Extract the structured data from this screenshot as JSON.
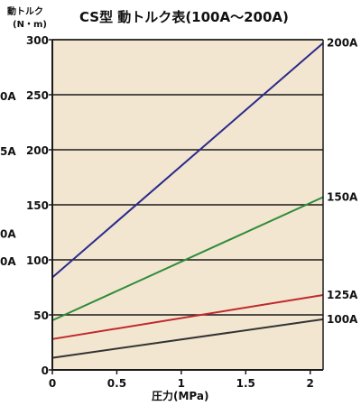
{
  "chart_data": {
    "type": "line",
    "title": "CS型 動トルク表(100A～200A)",
    "ylabel_line1": "動トルク",
    "ylabel_line2": "(N・m)",
    "xlabel": "圧力(MPa)",
    "xlim": [
      0,
      2.1
    ],
    "ylim": [
      0,
      300
    ],
    "x_ticks": [
      {
        "value": 0,
        "label": "0"
      },
      {
        "value": 0.5,
        "label": "0.5"
      },
      {
        "value": 1,
        "label": "1"
      },
      {
        "value": 1.5,
        "label": "1.5"
      },
      {
        "value": 2,
        "label": "2"
      }
    ],
    "y_ticks": [
      {
        "value": 0,
        "label": "0"
      },
      {
        "value": 50,
        "label": "50"
      },
      {
        "value": 100,
        "label": "100"
      },
      {
        "value": 150,
        "label": "150"
      },
      {
        "value": 200,
        "label": "200"
      },
      {
        "value": 250,
        "label": "250"
      },
      {
        "value": 300,
        "label": "300"
      }
    ],
    "grid": true,
    "background": "#f3e6d0",
    "left_cut_labels": [
      "0A",
      "5A",
      "0A",
      "0A"
    ],
    "series": [
      {
        "name": "200A",
        "color": "#2a2a8c",
        "x": [
          0,
          2.1
        ],
        "y": [
          84,
          297
        ]
      },
      {
        "name": "150A",
        "color": "#2e8b3a",
        "x": [
          0,
          2.1
        ],
        "y": [
          45,
          157
        ]
      },
      {
        "name": "125A",
        "color": "#c0282d",
        "x": [
          0,
          2.1
        ],
        "y": [
          28,
          68
        ]
      },
      {
        "name": "100A",
        "color": "#333333",
        "x": [
          0,
          2.1
        ],
        "y": [
          11,
          46
        ]
      }
    ]
  }
}
